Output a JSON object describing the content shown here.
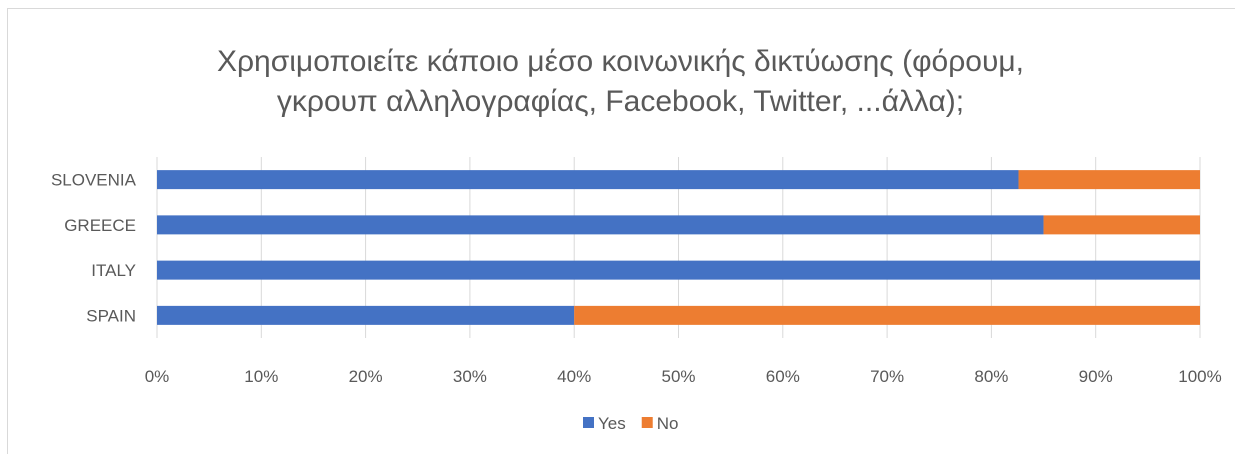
{
  "chart_data": {
    "type": "bar",
    "orientation": "horizontal",
    "stacked": "percent",
    "title": "Χρησιμοποιείτε κάποιο μέσο κοινωνικής δικτύωσης (φόρουμ, γκρουπ αλληλογραφίας, Facebook, Twitter, ...άλλα);",
    "categories": [
      "SLOVENIA",
      "GREECE",
      "ITALY",
      "SPAIN"
    ],
    "series": [
      {
        "name": "Yes",
        "color": "#4472c4",
        "values": [
          82.6,
          85.0,
          100.0,
          40.0
        ]
      },
      {
        "name": "No",
        "color": "#ed7d31",
        "values": [
          17.4,
          15.0,
          0.0,
          60.0
        ]
      }
    ],
    "xlim": [
      0,
      100
    ],
    "x_ticks": [
      "0%",
      "10%",
      "20%",
      "30%",
      "40%",
      "50%",
      "60%",
      "70%",
      "80%",
      "90%",
      "100%"
    ],
    "grid": true,
    "legend_position": "bottom"
  }
}
